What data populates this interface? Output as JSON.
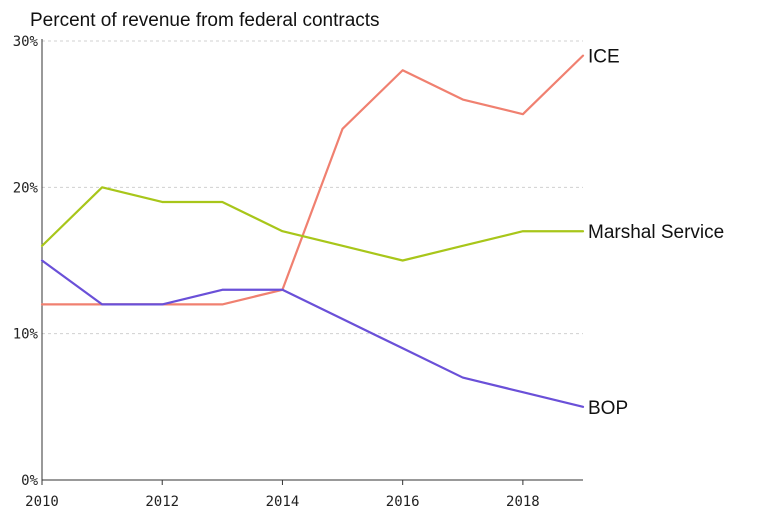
{
  "chart_data": {
    "type": "line",
    "title": "Percent of revenue from federal contracts",
    "xlabel": "",
    "ylabel": "",
    "x": [
      2010,
      2011,
      2012,
      2013,
      2014,
      2015,
      2016,
      2017,
      2018,
      2019
    ],
    "xlim": [
      2010,
      2019
    ],
    "ylim": [
      0,
      30
    ],
    "x_ticks": [
      "2010",
      "2012",
      "2014",
      "2016",
      "2018"
    ],
    "y_ticks": [
      "0%",
      "10%",
      "20%",
      "30%"
    ],
    "grid": true,
    "legend": "direct labels at line ends",
    "series": [
      {
        "name": "ICE",
        "color": "#f08070",
        "values": [
          12,
          12,
          12,
          12,
          13,
          24,
          28,
          26,
          25,
          29
        ]
      },
      {
        "name": "Marshal Service",
        "color": "#a8c61a",
        "values": [
          16,
          20,
          19,
          19,
          17,
          16,
          15,
          16,
          17,
          17
        ]
      },
      {
        "name": "BOP",
        "color": "#6a50d8",
        "values": [
          15,
          12,
          12,
          13,
          13,
          11,
          9,
          7,
          6,
          5
        ]
      }
    ]
  }
}
